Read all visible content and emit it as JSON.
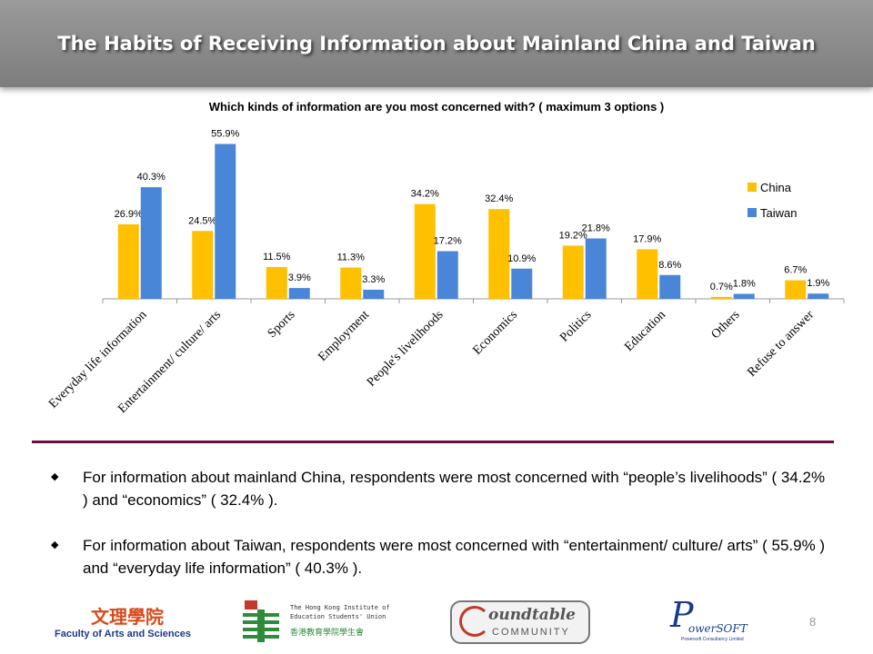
{
  "header": {
    "title": "The Habits of Receiving Information about Mainland China and Taiwan"
  },
  "chart_data": {
    "type": "bar",
    "title": "Which kinds of information are you most concerned with? ( maximum 3 options )",
    "categories": [
      "Everyday life information",
      "Entertainment/ culture/ arts",
      "Sports",
      "Employment",
      "People's livelihoods",
      "Economics",
      "Politics",
      "Education",
      "Others",
      "Refuse to answer"
    ],
    "series": [
      {
        "name": "China",
        "color": "#FFC000",
        "values": [
          26.9,
          24.5,
          11.5,
          11.3,
          34.2,
          32.4,
          19.2,
          17.9,
          0.7,
          6.7
        ],
        "labels": [
          "26.9%",
          "24.5%",
          "11.5%",
          "11.3%",
          "34.2%",
          "32.4%",
          "19.2%",
          "17.9%",
          "0.7%",
          "6.7%"
        ]
      },
      {
        "name": "Taiwan",
        "color": "#4A86D8",
        "values": [
          40.3,
          55.9,
          3.9,
          3.3,
          17.2,
          10.9,
          21.8,
          8.6,
          1.8,
          1.9
        ],
        "labels": [
          "40.3%",
          "55.9%",
          "3.9%",
          "3.3%",
          "17.2%",
          "10.9%",
          "21.8%",
          "8.6%",
          "1.8%",
          "1.9%"
        ]
      }
    ],
    "ylim": [
      0,
      60
    ],
    "legend_position": "right",
    "grid": false
  },
  "bullets": [
    "For information about mainland China, respondents were most concerned with “people’s livelihoods” ( 34.2% ) and “economics” ( 32.4% ).",
    "For information about Taiwan, respondents were most concerned with “entertainment/ culture/ arts” ( 55.9% ) and “everyday life information” ( 40.3% )."
  ],
  "bullet_symbol": "◆",
  "footer": {
    "logo1_chinese": "文理學院",
    "logo1_text": "Faculty of Arts and Sciences",
    "logo2_line1": "The Hong Kong Institute of",
    "logo2_line2": "Education Students' Union",
    "logo2_chinese": "香港教育學院學生會",
    "logo3_text1": "oundtable",
    "logo3_text2": "COMMUNITY",
    "logo4_text1": "owerSOFT",
    "logo4_text2": "Powersoft Consultancy Limited",
    "page_number": "8"
  }
}
